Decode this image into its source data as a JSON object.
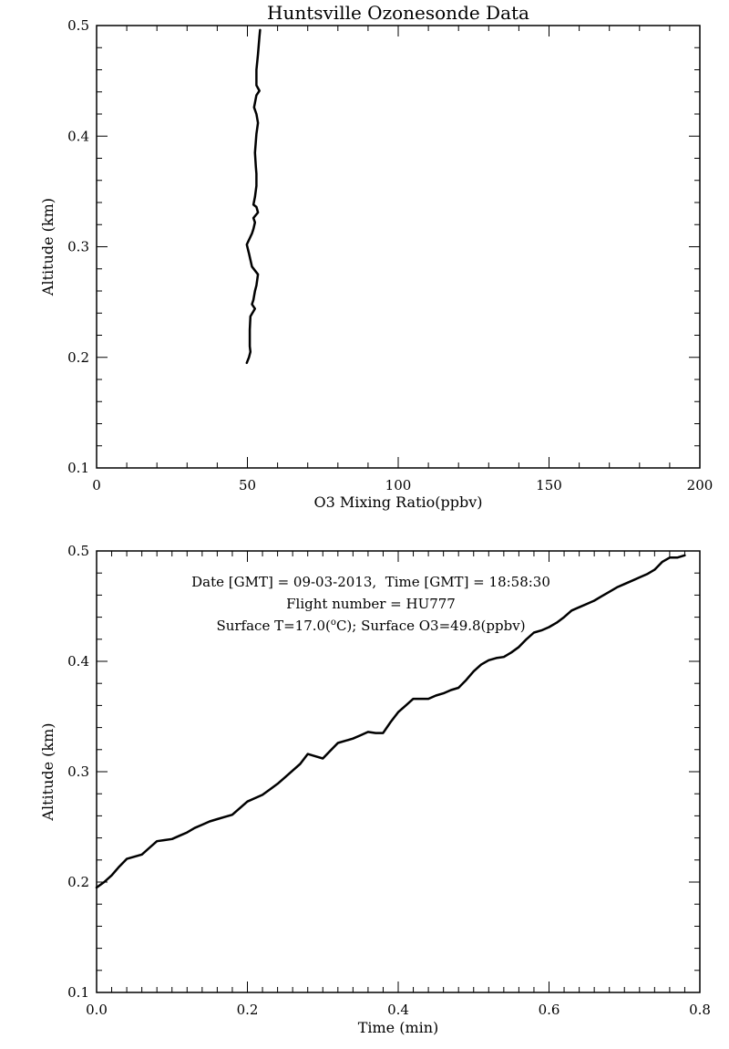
{
  "chart_data": [
    {
      "type": "line",
      "title": "Huntsville Ozonesonde Data",
      "xlabel": "O3 Mixing Ratio(ppbv)",
      "ylabel": "Altitude (km)",
      "xlim": [
        0,
        200
      ],
      "ylim": [
        0.1,
        0.5
      ],
      "xticks": [
        "0",
        "50",
        "100",
        "150",
        "200"
      ],
      "yticks": [
        "0.1",
        "0.2",
        "0.3",
        "0.4",
        "0.5"
      ],
      "grid": false,
      "series": [
        {
          "x": [
            49.8,
            50.5,
            51.0,
            50.8,
            50.8,
            51.0,
            52.5,
            51.5,
            52.0,
            52.5,
            53.0,
            53.5,
            51.5,
            50.5,
            49.8,
            51.5,
            52.0,
            52.5,
            52.0,
            53.5,
            53.0,
            52.0,
            52.5,
            53.0,
            53.0,
            52.8,
            52.5,
            53.0,
            53.5,
            53.0,
            52.2,
            53.0,
            54.0,
            53.0,
            53.0,
            53.5,
            54.0,
            54.2
          ],
          "y": [
            0.195,
            0.2,
            0.205,
            0.21,
            0.225,
            0.237,
            0.244,
            0.248,
            0.252,
            0.26,
            0.265,
            0.275,
            0.282,
            0.294,
            0.302,
            0.312,
            0.316,
            0.322,
            0.326,
            0.331,
            0.336,
            0.338,
            0.345,
            0.355,
            0.366,
            0.372,
            0.385,
            0.402,
            0.412,
            0.42,
            0.426,
            0.437,
            0.441,
            0.446,
            0.46,
            0.474,
            0.49,
            0.496
          ]
        }
      ]
    },
    {
      "type": "line",
      "title": "",
      "xlabel": "Time (min)",
      "ylabel": "Altitude (km)",
      "xlim": [
        0.0,
        0.8
      ],
      "ylim": [
        0.1,
        0.5
      ],
      "xticks": [
        "0.0",
        "0.2",
        "0.4",
        "0.6",
        "0.8"
      ],
      "yticks": [
        "0.1",
        "0.2",
        "0.3",
        "0.4",
        "0.5"
      ],
      "grid": false,
      "annotations": [
        "Date [GMT] = 09-03-2013,  Time [GMT] = 18:58:30",
        "Flight number = HU777"
      ],
      "surface_line": {
        "prefix": "Surface T=17.0(",
        "sup": "o",
        "suffix": "C); Surface O3=49.8(ppbv)"
      },
      "series": [
        {
          "x": [
            0.0,
            0.01,
            0.02,
            0.03,
            0.04,
            0.05,
            0.06,
            0.07,
            0.08,
            0.09,
            0.1,
            0.11,
            0.12,
            0.13,
            0.14,
            0.15,
            0.16,
            0.17,
            0.18,
            0.19,
            0.2,
            0.21,
            0.22,
            0.23,
            0.24,
            0.25,
            0.26,
            0.27,
            0.28,
            0.29,
            0.3,
            0.31,
            0.32,
            0.33,
            0.34,
            0.35,
            0.36,
            0.37,
            0.38,
            0.39,
            0.4,
            0.41,
            0.42,
            0.43,
            0.44,
            0.45,
            0.46,
            0.47,
            0.48,
            0.49,
            0.5,
            0.51,
            0.52,
            0.53,
            0.54,
            0.55,
            0.56,
            0.57,
            0.58,
            0.59,
            0.6,
            0.61,
            0.62,
            0.63,
            0.64,
            0.65,
            0.66,
            0.67,
            0.68,
            0.69,
            0.7,
            0.71,
            0.72,
            0.73,
            0.74,
            0.75,
            0.76,
            0.77,
            0.78
          ],
          "y": [
            0.195,
            0.2,
            0.206,
            0.214,
            0.221,
            0.223,
            0.225,
            0.231,
            0.237,
            0.238,
            0.239,
            0.242,
            0.245,
            0.249,
            0.252,
            0.255,
            0.257,
            0.259,
            0.261,
            0.267,
            0.273,
            0.276,
            0.279,
            0.284,
            0.289,
            0.295,
            0.301,
            0.307,
            0.316,
            0.314,
            0.312,
            0.319,
            0.326,
            0.328,
            0.33,
            0.333,
            0.336,
            0.335,
            0.335,
            0.345,
            0.354,
            0.36,
            0.366,
            0.366,
            0.366,
            0.369,
            0.371,
            0.374,
            0.376,
            0.383,
            0.391,
            0.397,
            0.401,
            0.403,
            0.404,
            0.408,
            0.413,
            0.42,
            0.426,
            0.428,
            0.431,
            0.435,
            0.44,
            0.446,
            0.449,
            0.452,
            0.455,
            0.459,
            0.463,
            0.467,
            0.47,
            0.473,
            0.476,
            0.479,
            0.483,
            0.49,
            0.494,
            0.494,
            0.496
          ]
        }
      ]
    }
  ]
}
